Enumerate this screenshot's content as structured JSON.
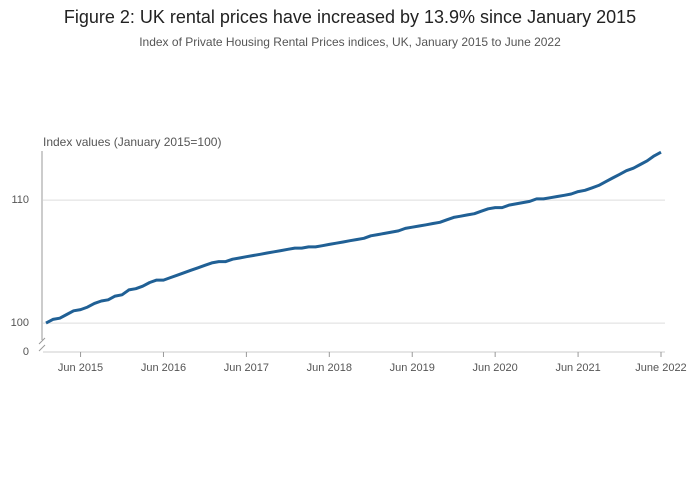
{
  "chart_data": {
    "type": "line",
    "title": "Figure 2: UK rental prices have increased by 13.9% since January 2015",
    "subtitle": "Index of Private Housing Rental Prices indices, UK, January 2015 to June 2022",
    "y_label": "Index values (January 2015=100)",
    "x": [
      "Jan 2015",
      "Feb 2015",
      "Mar 2015",
      "Apr 2015",
      "May 2015",
      "Jun 2015",
      "Jul 2015",
      "Aug 2015",
      "Sep 2015",
      "Oct 2015",
      "Nov 2015",
      "Dec 2015",
      "Jan 2016",
      "Feb 2016",
      "Mar 2016",
      "Apr 2016",
      "May 2016",
      "Jun 2016",
      "Jul 2016",
      "Aug 2016",
      "Sep 2016",
      "Oct 2016",
      "Nov 2016",
      "Dec 2016",
      "Jan 2017",
      "Feb 2017",
      "Mar 2017",
      "Apr 2017",
      "May 2017",
      "Jun 2017",
      "Jul 2017",
      "Aug 2017",
      "Sep 2017",
      "Oct 2017",
      "Nov 2017",
      "Dec 2017",
      "Jan 2018",
      "Feb 2018",
      "Mar 2018",
      "Apr 2018",
      "May 2018",
      "Jun 2018",
      "Jul 2018",
      "Aug 2018",
      "Sep 2018",
      "Oct 2018",
      "Nov 2018",
      "Dec 2018",
      "Jan 2019",
      "Feb 2019",
      "Mar 2019",
      "Apr 2019",
      "May 2019",
      "Jun 2019",
      "Jul 2019",
      "Aug 2019",
      "Sep 2019",
      "Oct 2019",
      "Nov 2019",
      "Dec 2019",
      "Jan 2020",
      "Feb 2020",
      "Mar 2020",
      "Apr 2020",
      "May 2020",
      "Jun 2020",
      "Jul 2020",
      "Aug 2020",
      "Sep 2020",
      "Oct 2020",
      "Nov 2020",
      "Dec 2020",
      "Jan 2021",
      "Feb 2021",
      "Mar 2021",
      "Apr 2021",
      "May 2021",
      "Jun 2021",
      "Jul 2021",
      "Aug 2021",
      "Sep 2021",
      "Oct 2021",
      "Nov 2021",
      "Dec 2021",
      "Jan 2022",
      "Feb 2022",
      "Mar 2022",
      "Apr 2022",
      "May 2022",
      "Jun 2022"
    ],
    "series": [
      {
        "color": "#206095",
        "values": [
          100.0,
          100.3,
          100.4,
          100.7,
          101.0,
          101.1,
          101.3,
          101.6,
          101.8,
          101.9,
          102.2,
          102.3,
          102.7,
          102.8,
          103.0,
          103.3,
          103.5,
          103.5,
          103.7,
          103.9,
          104.1,
          104.3,
          104.5,
          104.7,
          104.9,
          105.0,
          105.0,
          105.2,
          105.3,
          105.4,
          105.5,
          105.6,
          105.7,
          105.8,
          105.9,
          106.0,
          106.1,
          106.1,
          106.2,
          106.2,
          106.3,
          106.4,
          106.5,
          106.6,
          106.7,
          106.8,
          106.9,
          107.1,
          107.2,
          107.3,
          107.4,
          107.5,
          107.7,
          107.8,
          107.9,
          108.0,
          108.1,
          108.2,
          108.4,
          108.6,
          108.7,
          108.8,
          108.9,
          109.1,
          109.3,
          109.4,
          109.4,
          109.6,
          109.7,
          109.8,
          109.9,
          110.1,
          110.1,
          110.2,
          110.3,
          110.4,
          110.5,
          110.7,
          110.8,
          111.0,
          111.2,
          111.5,
          111.8,
          112.1,
          112.4,
          112.6,
          112.9,
          113.2,
          113.6,
          113.9
        ]
      }
    ],
    "xticks": [
      "Jun 2015",
      "Jun 2016",
      "Jun 2017",
      "Jun 2018",
      "Jun 2019",
      "Jun 2020",
      "Jun 2021",
      {
        "value": "Jun 2022",
        "label": "June 2022"
      }
    ],
    "ylim": [
      97.65,
      114
    ],
    "yticks": [
      0,
      100,
      110
    ],
    "axis_break": true,
    "grid": true
  }
}
